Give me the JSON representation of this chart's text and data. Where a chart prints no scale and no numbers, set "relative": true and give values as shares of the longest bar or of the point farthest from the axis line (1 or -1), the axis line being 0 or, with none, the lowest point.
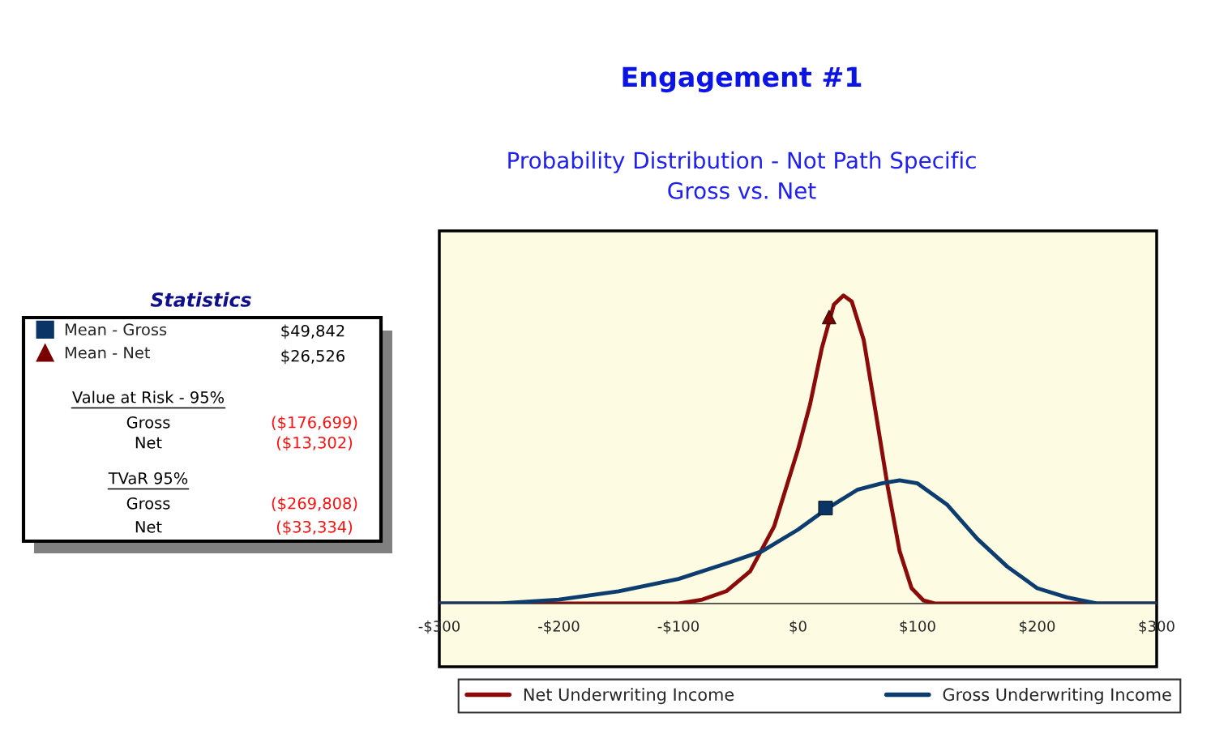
{
  "chart_data": {
    "type": "line",
    "title": "Engagement #1",
    "subtitle": "Probability Distribution - Not Path Specific\nGross vs. Net",
    "relative": true,
    "xlim": [
      -300,
      300
    ],
    "xticks": [
      {
        "value": -300,
        "label": "-$300"
      },
      {
        "value": -200,
        "label": "-$200"
      },
      {
        "value": -100,
        "label": "-$100"
      },
      {
        "value": 0,
        "label": "$0"
      },
      {
        "value": 100,
        "label": "$100"
      },
      {
        "value": 200,
        "label": "$200"
      },
      {
        "value": 300,
        "label": "$300"
      }
    ],
    "series": [
      {
        "name": "Net Underwriting Income",
        "color": "#8b0a0a",
        "x": [
          -300,
          -200,
          -100,
          -80,
          -60,
          -40,
          -20,
          0,
          10,
          20,
          30,
          38,
          45,
          55,
          65,
          75,
          85,
          95,
          105,
          115,
          200,
          300
        ],
        "values": [
          0,
          0,
          0,
          0.013,
          0.04,
          0.105,
          0.25,
          0.5,
          0.645,
          0.83,
          0.97,
          1,
          0.98,
          0.855,
          0.62,
          0.38,
          0.17,
          0.05,
          0.01,
          0,
          0,
          0
        ]
      },
      {
        "name": "Gross Underwriting Income",
        "color": "#0d3d6e",
        "x": [
          -300,
          -250,
          -200,
          -150,
          -100,
          -60,
          -30,
          0,
          25,
          50,
          70,
          85,
          100,
          125,
          150,
          175,
          200,
          225,
          250,
          300
        ],
        "values": [
          0,
          0,
          0.013,
          0.04,
          0.08,
          0.13,
          0.17,
          0.24,
          0.31,
          0.37,
          0.39,
          0.4,
          0.39,
          0.32,
          0.21,
          0.12,
          0.05,
          0.02,
          0,
          0
        ]
      },
      {
        "type": "scatter",
        "name": "Mean - Gross",
        "color": "#0a3366",
        "marker": "square",
        "x": [
          23
        ],
        "values": [
          0.31
        ]
      },
      {
        "type": "scatter",
        "name": "Mean - Net",
        "color": "#7a0000",
        "marker": "triangle",
        "x": [
          26
        ],
        "values": [
          0.93
        ]
      }
    ],
    "legend": "bottom",
    "annotations": [
      "Statistics",
      "$49,842",
      "$26,526",
      "Value at Risk - 95%",
      "Gross",
      "($176,699)",
      "Net",
      "($13,302)",
      "TVaR 95%",
      "Gross",
      "($269,808)",
      "Net",
      "($33,334)"
    ]
  }
}
